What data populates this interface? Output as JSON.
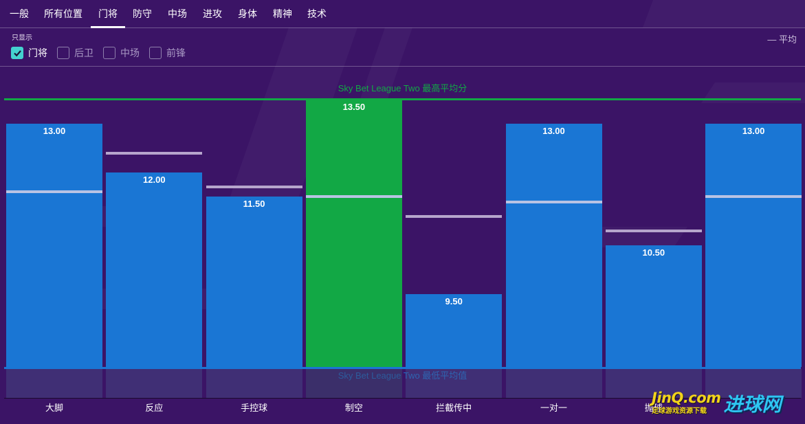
{
  "tabs": [
    {
      "label": "一般",
      "active": false
    },
    {
      "label": "所有位置",
      "active": false
    },
    {
      "label": "门将",
      "active": true
    },
    {
      "label": "防守",
      "active": false
    },
    {
      "label": "中场",
      "active": false
    },
    {
      "label": "进攻",
      "active": false
    },
    {
      "label": "身体",
      "active": false
    },
    {
      "label": "精神",
      "active": false
    },
    {
      "label": "技术",
      "active": false
    }
  ],
  "filter": {
    "caption": "只显示",
    "options": [
      {
        "label": "门将",
        "checked": true
      },
      {
        "label": "后卫",
        "checked": false
      },
      {
        "label": "中场",
        "checked": false
      },
      {
        "label": "前锋",
        "checked": false
      }
    ]
  },
  "legend": {
    "average_label": "— 平均"
  },
  "colors": {
    "background": "#3b1466",
    "bar": "#1a76d4",
    "bar_highlight": "#12a845",
    "max_line": "#12a845",
    "min_line": "#1a76d4",
    "avg_line": "#b9c3e4",
    "check_accent": "#44d2cf"
  },
  "chart_data": {
    "type": "bar",
    "categories": [
      "大脚",
      "反应",
      "手控球",
      "制空",
      "拦截传中",
      "一对一",
      "抛球",
      ""
    ],
    "values": [
      13.0,
      12.0,
      11.5,
      13.5,
      9.5,
      13.0,
      10.5,
      13.0
    ],
    "value_labels": [
      "13.00",
      "12.00",
      "11.50",
      "13.50",
      "9.50",
      "13.00",
      "10.50",
      "13.00"
    ],
    "averages": [
      11.6,
      12.4,
      11.7,
      11.5,
      11.1,
      11.4,
      10.8,
      11.5
    ],
    "highlight_index": 3,
    "max_reference": {
      "label": "Sky Bet League Two 最高平均分",
      "value": 13.5
    },
    "min_reference": {
      "label": "Sky Bet League Two 最低平均值",
      "value": 8.0
    },
    "ylim": [
      8.0,
      13.5
    ]
  },
  "watermark": {
    "main": "JinQ.com",
    "sub": "足球游戏资源下载",
    "brand": "进球网"
  }
}
